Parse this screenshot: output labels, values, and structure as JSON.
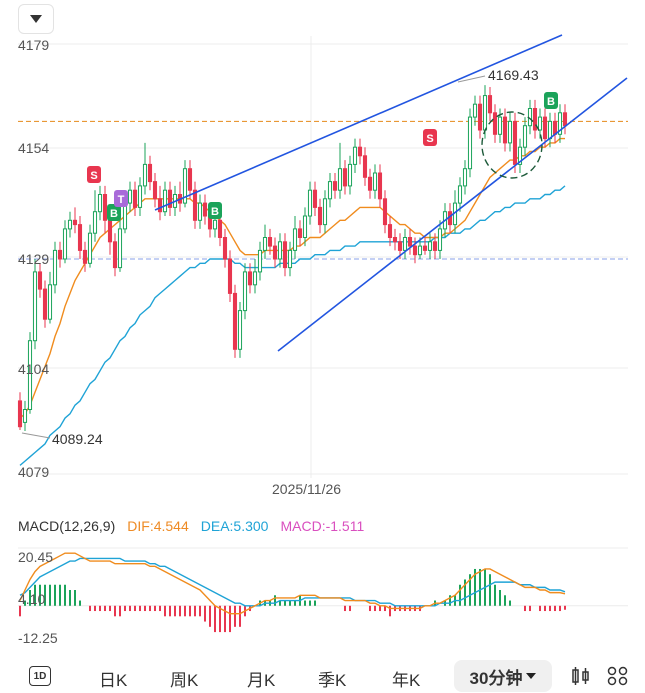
{
  "price_axis": {
    "labels": [
      "4179",
      "4154",
      "4129",
      "4104",
      "4079"
    ]
  },
  "time_axis": {
    "date_label": "2025/11/26"
  },
  "annotations": {
    "high_label": "4169.43",
    "low_label": "4089.24"
  },
  "signal_badges": [
    "S",
    "B",
    "T",
    "B",
    "S",
    "B"
  ],
  "macd": {
    "title": "MACD(12,26,9)",
    "dif": "DIF:4.544",
    "dea": "DEA:5.300",
    "macd": "MACD:-1.511",
    "axis_labels": [
      "20.45",
      "4.10",
      "-12.25"
    ]
  },
  "period_tabs": {
    "intraday_icon": "1D",
    "day": "日K",
    "week": "周K",
    "month": "月K",
    "quarter": "季K",
    "year": "年K",
    "selected": "30分钟"
  },
  "colors": {
    "up": "#1ba35a",
    "down": "#e8364f",
    "ma_fast": "#f08c1e",
    "ma_slow": "#1fa3d6",
    "trend": "#2255e0",
    "dashed_price": "#e58a1a"
  },
  "chart_data": {
    "type": "candlestick",
    "ylim": [
      4079,
      4179
    ],
    "candles": [
      [
        4096,
        4090,
        4098,
        4089.24
      ],
      [
        4091,
        4094,
        4096,
        4089
      ],
      [
        4094,
        4110,
        4112,
        4093
      ],
      [
        4110,
        4126,
        4129,
        4108
      ],
      [
        4126,
        4122,
        4128,
        4120
      ],
      [
        4122,
        4115,
        4124,
        4113
      ],
      [
        4115,
        4123,
        4126,
        4114
      ],
      [
        4123,
        4131,
        4133,
        4121
      ],
      [
        4131,
        4129,
        4133,
        4127
      ],
      [
        4129,
        4136,
        4138,
        4128
      ],
      [
        4136,
        4138,
        4140,
        4134
      ],
      [
        4138,
        4137,
        4141,
        4135
      ],
      [
        4137,
        4131,
        4139,
        4129
      ],
      [
        4131,
        4128,
        4133,
        4126
      ],
      [
        4128,
        4135,
        4137,
        4127
      ],
      [
        4135,
        4140,
        4145,
        4133
      ],
      [
        4140,
        4144,
        4146,
        4138
      ],
      [
        4144,
        4138,
        4146,
        4135
      ],
      [
        4138,
        4133,
        4140,
        4130
      ],
      [
        4133,
        4127,
        4135,
        4125
      ],
      [
        4127,
        4136,
        4139,
        4126
      ],
      [
        4136,
        4142,
        4145,
        4135
      ],
      [
        4142,
        4145,
        4147,
        4140
      ],
      [
        4145,
        4141,
        4147,
        4139
      ],
      [
        4141,
        4146,
        4148,
        4139
      ],
      [
        4146,
        4151,
        4156,
        4144
      ],
      [
        4151,
        4147,
        4153,
        4145
      ],
      [
        4147,
        4143,
        4149,
        4141
      ],
      [
        4143,
        4140,
        4146,
        4138
      ],
      [
        4140,
        4145,
        4147,
        4139
      ],
      [
        4145,
        4141,
        4147,
        4139
      ],
      [
        4141,
        4144,
        4146,
        4139
      ],
      [
        4144,
        4142,
        4147,
        4140
      ],
      [
        4142,
        4150,
        4152,
        4141
      ],
      [
        4150,
        4145,
        4152,
        4143
      ],
      [
        4145,
        4138,
        4147,
        4136
      ],
      [
        4138,
        4142,
        4144,
        4136
      ],
      [
        4142,
        4139,
        4144,
        4137
      ],
      [
        4139,
        4136,
        4141,
        4134
      ],
      [
        4136,
        4138,
        4140,
        4134
      ],
      [
        4138,
        4134,
        4140,
        4132
      ],
      [
        4134,
        4129,
        4136,
        4127
      ],
      [
        4129,
        4121,
        4131,
        4119
      ],
      [
        4121,
        4108,
        4123,
        4106
      ],
      [
        4108,
        4117,
        4119,
        4106
      ],
      [
        4117,
        4126,
        4128,
        4115
      ],
      [
        4126,
        4123,
        4128,
        4121
      ],
      [
        4123,
        4126,
        4129,
        4121
      ],
      [
        4126,
        4131,
        4133,
        4124
      ],
      [
        4131,
        4134,
        4137,
        4129
      ],
      [
        4134,
        4132,
        4136,
        4130
      ],
      [
        4132,
        4129,
        4134,
        4127
      ],
      [
        4129,
        4133,
        4135,
        4127
      ],
      [
        4133,
        4127,
        4135,
        4125
      ],
      [
        4127,
        4131,
        4133,
        4125
      ],
      [
        4131,
        4136,
        4139,
        4129
      ],
      [
        4136,
        4134,
        4138,
        4132
      ],
      [
        4134,
        4139,
        4141,
        4132
      ],
      [
        4139,
        4145,
        4147,
        4137
      ],
      [
        4145,
        4141,
        4147,
        4139
      ],
      [
        4141,
        4137,
        4143,
        4135
      ],
      [
        4137,
        4143,
        4145,
        4135
      ],
      [
        4143,
        4147,
        4149,
        4141
      ],
      [
        4147,
        4145,
        4149,
        4143
      ],
      [
        4145,
        4150,
        4156,
        4143
      ],
      [
        4150,
        4146,
        4152,
        4144
      ],
      [
        4146,
        4151,
        4153,
        4144
      ],
      [
        4151,
        4155,
        4157,
        4149
      ],
      [
        4155,
        4153,
        4157,
        4151
      ],
      [
        4153,
        4148,
        4155,
        4146
      ],
      [
        4148,
        4145,
        4150,
        4143
      ],
      [
        4145,
        4149,
        4151,
        4143
      ],
      [
        4149,
        4143,
        4151,
        4141
      ],
      [
        4143,
        4137,
        4145,
        4135
      ],
      [
        4137,
        4134,
        4139,
        4132
      ],
      [
        4134,
        4133,
        4136,
        4131
      ],
      [
        4133,
        4131,
        4135,
        4129
      ],
      [
        4131,
        4134,
        4136,
        4129
      ],
      [
        4134,
        4132,
        4136,
        4130
      ],
      [
        4132,
        4130,
        4134,
        4128
      ],
      [
        4130,
        4132,
        4134,
        4129
      ],
      [
        4132,
        4131,
        4134,
        4130
      ],
      [
        4131,
        4133,
        4135,
        4129
      ],
      [
        4133,
        4131,
        4135,
        4129
      ],
      [
        4131,
        4136,
        4138,
        4129
      ],
      [
        4136,
        4140,
        4142,
        4134
      ],
      [
        4140,
        4137,
        4142,
        4135
      ],
      [
        4137,
        4142,
        4145,
        4135
      ],
      [
        4142,
        4146,
        4148,
        4140
      ],
      [
        4146,
        4150,
        4152,
        4144
      ],
      [
        4150,
        4162,
        4164,
        4148
      ],
      [
        4162,
        4165,
        4167,
        4160
      ],
      [
        4165,
        4159,
        4167,
        4157
      ],
      [
        4159,
        4167,
        4169.43,
        4157
      ],
      [
        4167,
        4163,
        4169,
        4161
      ],
      [
        4163,
        4158,
        4165,
        4156
      ],
      [
        4158,
        4162,
        4164,
        4156
      ],
      [
        4162,
        4156,
        4164,
        4154
      ],
      [
        4156,
        4161,
        4163,
        4154
      ],
      [
        4161,
        4151,
        4163,
        4149
      ],
      [
        4151,
        4155,
        4157,
        4149
      ],
      [
        4155,
        4160,
        4162,
        4153
      ],
      [
        4160,
        4164,
        4166,
        4158
      ],
      [
        4164,
        4159,
        4166,
        4157
      ],
      [
        4159,
        4162,
        4164,
        4157
      ],
      [
        4162,
        4157,
        4164,
        4155
      ],
      [
        4157,
        4161,
        4163,
        4155
      ],
      [
        4161,
        4158,
        4163,
        4156
      ],
      [
        4158,
        4163,
        4165,
        4156
      ],
      [
        4163,
        4160,
        4165,
        4158
      ]
    ],
    "ma_fast": [
      4092,
      4093,
      4095,
      4098,
      4101,
      4104,
      4107,
      4111,
      4114,
      4118,
      4121,
      4124,
      4126,
      4128,
      4130,
      4132,
      4134,
      4135,
      4136,
      4137,
      4138,
      4139,
      4140,
      4141,
      4142,
      4143,
      4143,
      4143,
      4143,
      4143,
      4143,
      4143,
      4143,
      4143,
      4143,
      4142,
      4142,
      4141,
      4140,
      4139,
      4138,
      4137,
      4135,
      4133,
      4131,
      4130,
      4130,
      4130,
      4130,
      4131,
      4131,
      4131,
      4131,
      4131,
      4131,
      4132,
      4132,
      4133,
      4134,
      4134,
      4134,
      4135,
      4136,
      4137,
      4138,
      4138,
      4139,
      4140,
      4141,
      4141,
      4141,
      4141,
      4141,
      4140,
      4139,
      4138,
      4137,
      4137,
      4136,
      4135,
      4135,
      4134,
      4134,
      4134,
      4134,
      4135,
      4135,
      4136,
      4137,
      4138,
      4140,
      4142,
      4144,
      4146,
      4148,
      4149,
      4150,
      4151,
      4152,
      4152,
      4153,
      4153,
      4154,
      4154,
      4155,
      4155,
      4156,
      4156,
      4157,
      4157
    ],
    "ma_slow": [
      4081,
      4082,
      4083,
      4084,
      4085,
      4086,
      4088,
      4089,
      4090,
      4092,
      4093,
      4095,
      4096,
      4098,
      4100,
      4101,
      4103,
      4105,
      4106,
      4108,
      4110,
      4111,
      4113,
      4114,
      4116,
      4117,
      4118,
      4120,
      4121,
      4122,
      4123,
      4124,
      4125,
      4126,
      4127,
      4127,
      4128,
      4128,
      4129,
      4129,
      4129,
      4129,
      4129,
      4128,
      4128,
      4127,
      4127,
      4127,
      4127,
      4127,
      4127,
      4127,
      4128,
      4128,
      4128,
      4128,
      4129,
      4129,
      4129,
      4130,
      4130,
      4130,
      4131,
      4131,
      4131,
      4132,
      4132,
      4132,
      4133,
      4133,
      4133,
      4133,
      4133,
      4133,
      4133,
      4133,
      4133,
      4133,
      4133,
      4133,
      4133,
      4133,
      4133,
      4134,
      4134,
      4134,
      4135,
      4135,
      4135,
      4136,
      4136,
      4137,
      4138,
      4138,
      4139,
      4140,
      4140,
      4141,
      4141,
      4142,
      4142,
      4142,
      4143,
      4143,
      4143,
      4144,
      4144,
      4145,
      4145,
      4146
    ],
    "dashed_price_orange": 4161,
    "dashed_price_blue": 4129,
    "macd": {
      "ylim": [
        -12.25,
        20.45
      ],
      "dif": [
        2,
        6,
        10,
        13,
        15,
        16,
        17,
        18,
        19,
        20,
        20,
        20,
        19,
        18,
        17,
        17,
        17,
        17,
        17,
        16,
        16,
        16,
        16,
        16,
        16,
        16,
        15,
        15,
        14,
        13,
        12,
        11,
        10,
        9,
        8,
        7,
        6,
        4,
        2,
        0,
        -1,
        -2,
        -3,
        -3,
        -3,
        -2,
        -1,
        0,
        1,
        2,
        2,
        3,
        3,
        3,
        3,
        3,
        4,
        4,
        4,
        4,
        3,
        3,
        3,
        3,
        3,
        2,
        2,
        2,
        2,
        2,
        1,
        1,
        0,
        0,
        -1,
        -1,
        -1,
        -1,
        -1,
        -1,
        -1,
        0,
        0,
        1,
        1,
        2,
        3,
        4,
        6,
        8,
        10,
        12,
        13,
        14,
        14,
        13,
        12,
        11,
        10,
        9,
        8,
        7,
        7,
        7,
        6,
        6,
        5,
        5,
        5,
        4.544
      ],
      "dea": [
        4,
        5,
        7,
        9,
        11,
        12,
        13,
        14,
        15,
        16,
        17,
        17,
        18,
        18,
        18,
        18,
        18,
        18,
        18,
        18,
        18,
        17,
        17,
        17,
        17,
        17,
        16,
        16,
        15,
        15,
        14,
        13,
        12,
        11,
        10,
        9,
        8,
        7,
        6,
        5,
        4,
        3,
        2,
        1,
        1,
        0,
        0,
        0,
        0,
        1,
        1,
        1,
        2,
        2,
        2,
        2,
        2,
        3,
        3,
        3,
        3,
        3,
        3,
        3,
        3,
        3,
        3,
        2,
        2,
        2,
        2,
        2,
        1,
        1,
        1,
        0,
        0,
        0,
        0,
        0,
        0,
        0,
        0,
        0,
        1,
        1,
        1,
        2,
        2,
        3,
        4,
        5,
        6,
        7,
        8,
        9,
        9,
        9,
        9,
        9,
        8,
        8,
        8,
        7,
        7,
        7,
        6,
        6,
        6,
        5.3
      ]
    }
  }
}
